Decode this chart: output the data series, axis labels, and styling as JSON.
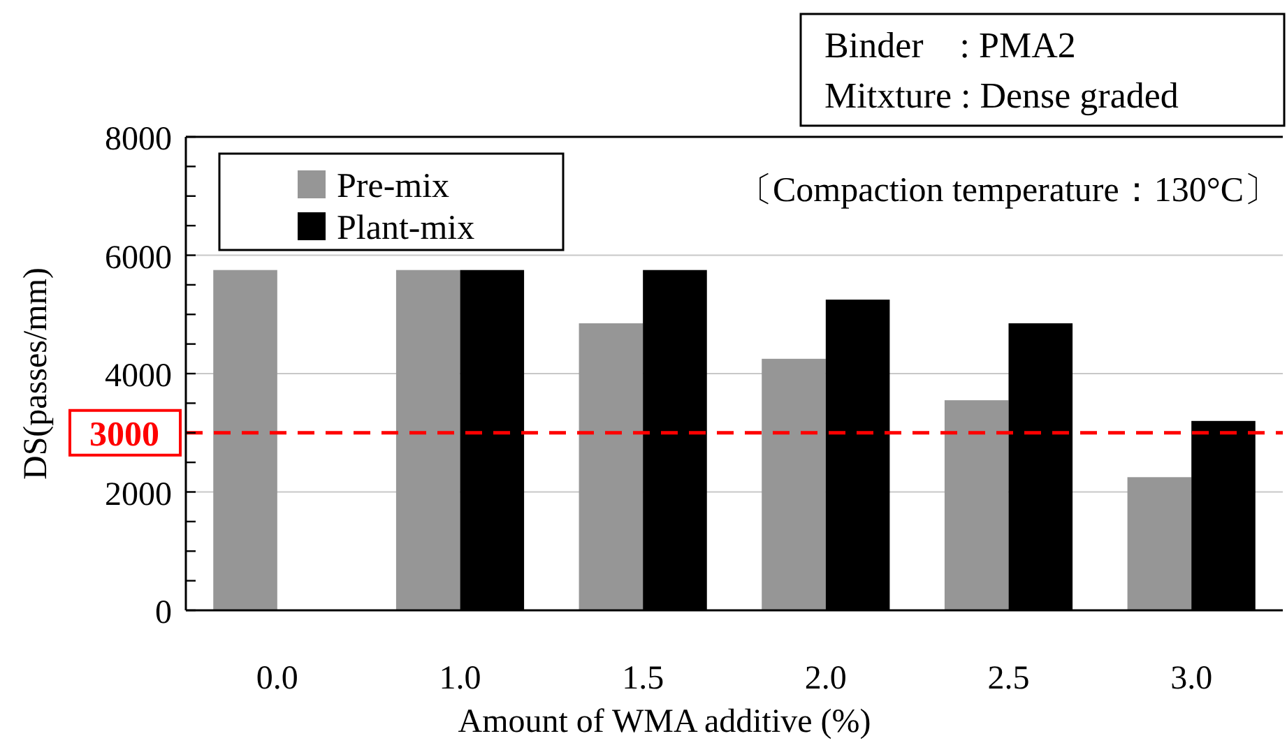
{
  "chart_data": {
    "type": "bar",
    "xlabel": "Amount of WMA additive (%)",
    "ylabel": "DS(passes/mm)",
    "categories": [
      "0.0",
      "1.0",
      "1.5",
      "2.0",
      "2.5",
      "3.0"
    ],
    "series": [
      {
        "name": "Pre-mix",
        "color": "#969696",
        "values": [
          5750,
          5750,
          4850,
          4250,
          3550,
          2250
        ]
      },
      {
        "name": "Plant-mix",
        "color": "#000000",
        "values": [
          null,
          5750,
          5750,
          5250,
          4850,
          3200
        ]
      }
    ],
    "ylim": [
      0,
      8000
    ],
    "yticks": [
      0,
      {
        "value": 500,
        "label": null
      },
      {
        "value": 1000,
        "label": null
      },
      {
        "value": 1500,
        "label": null
      },
      2000,
      {
        "value": 2500,
        "label": null
      },
      {
        "value": 3000,
        "label": null
      },
      {
        "value": 3500,
        "label": null
      },
      4000,
      {
        "value": 4500,
        "label": null
      },
      {
        "value": 5000,
        "label": null
      },
      {
        "value": 5500,
        "label": null
      },
      6000,
      {
        "value": 6500,
        "label": null
      },
      {
        "value": 7000,
        "label": null
      },
      {
        "value": 7500,
        "label": null
      },
      8000
    ],
    "grid": "y",
    "legend": "top left",
    "ref_lines": [
      {
        "axis": "y",
        "value": 3000,
        "label": "3000",
        "color": "#ff0000",
        "line_style": "dashed"
      }
    ],
    "annotations": [
      "Binder　: PMA2",
      "Mitxture : Dense graded",
      "〔Compaction temperature：130°C〕"
    ]
  }
}
